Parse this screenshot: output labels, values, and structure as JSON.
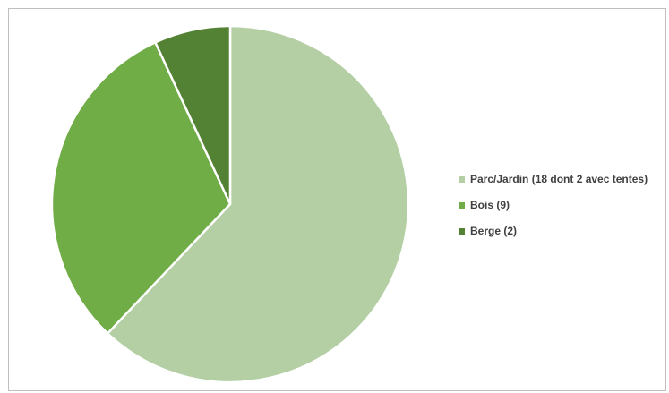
{
  "chart_data": {
    "type": "pie",
    "title": "",
    "categories": [
      "Parc/Jardin (18 dont 2 avec tentes)",
      "Bois (9)",
      "Berge (2)"
    ],
    "values": [
      18,
      9,
      2
    ],
    "colors": [
      "#b4cfa4",
      "#70ad47",
      "#548235"
    ],
    "start_angle_deg": 0,
    "direction": "clockwise",
    "legend_position": "right"
  }
}
